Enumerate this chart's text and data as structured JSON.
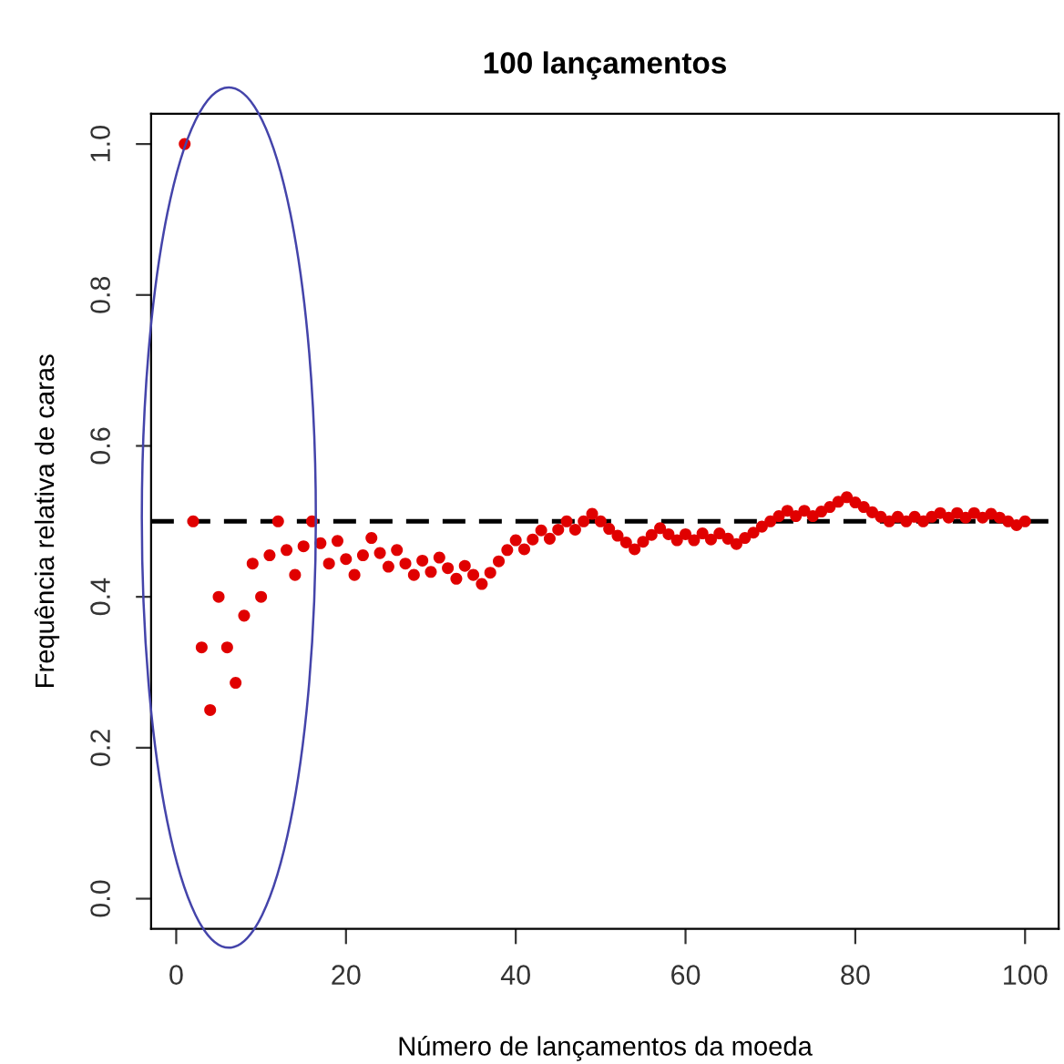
{
  "chart_data": {
    "type": "scatter",
    "title": "100 lançamentos",
    "xlabel": "Número de lançamentos da moeda",
    "ylabel": "Frequência relativa de caras",
    "x": [
      1,
      2,
      3,
      4,
      5,
      6,
      7,
      8,
      9,
      10,
      11,
      12,
      13,
      14,
      15,
      16,
      17,
      18,
      19,
      20,
      21,
      22,
      23,
      24,
      25,
      26,
      27,
      28,
      29,
      30,
      31,
      32,
      33,
      34,
      35,
      36,
      37,
      38,
      39,
      40,
      41,
      42,
      43,
      44,
      45,
      46,
      47,
      48,
      49,
      50,
      51,
      52,
      53,
      54,
      55,
      56,
      57,
      58,
      59,
      60,
      61,
      62,
      63,
      64,
      65,
      66,
      67,
      68,
      69,
      70,
      71,
      72,
      73,
      74,
      75,
      76,
      77,
      78,
      79,
      80,
      81,
      82,
      83,
      84,
      85,
      86,
      87,
      88,
      89,
      90,
      91,
      92,
      93,
      94,
      95,
      96,
      97,
      98,
      99,
      100
    ],
    "series": [
      {
        "color": "#e00000",
        "values": [
          1.0,
          0.5,
          0.333,
          0.25,
          0.4,
          0.333,
          0.286,
          0.375,
          0.444,
          0.4,
          0.455,
          0.5,
          0.462,
          0.429,
          0.467,
          0.5,
          0.471,
          0.444,
          0.474,
          0.45,
          0.429,
          0.455,
          0.478,
          0.458,
          0.44,
          0.462,
          0.444,
          0.429,
          0.448,
          0.433,
          0.452,
          0.438,
          0.424,
          0.441,
          0.429,
          0.417,
          0.432,
          0.447,
          0.462,
          0.475,
          0.463,
          0.476,
          0.488,
          0.477,
          0.489,
          0.5,
          0.489,
          0.5,
          0.51,
          0.5,
          0.49,
          0.481,
          0.472,
          0.463,
          0.473,
          0.482,
          0.491,
          0.483,
          0.475,
          0.483,
          0.475,
          0.484,
          0.476,
          0.484,
          0.477,
          0.47,
          0.478,
          0.485,
          0.493,
          0.5,
          0.507,
          0.514,
          0.507,
          0.514,
          0.507,
          0.513,
          0.519,
          0.526,
          0.532,
          0.525,
          0.519,
          0.512,
          0.506,
          0.5,
          0.506,
          0.5,
          0.506,
          0.5,
          0.506,
          0.511,
          0.505,
          0.511,
          0.505,
          0.511,
          0.505,
          0.51,
          0.505,
          0.5,
          0.495,
          0.5
        ]
      }
    ],
    "xlim": [
      -2.96,
      103.96
    ],
    "ylim": [
      -0.04,
      1.04
    ],
    "xticks": [
      0,
      20,
      40,
      60,
      80,
      100
    ],
    "yticks": [
      {
        "value": 0,
        "label": "0.0"
      },
      {
        "value": 0.2,
        "label": "0.2"
      },
      {
        "value": 0.4,
        "label": "0.4"
      },
      {
        "value": 0.6,
        "label": "0.6"
      },
      {
        "value": 0.8,
        "label": "0.8"
      },
      {
        "value": 1.0,
        "label": "1.0"
      }
    ],
    "ref_lines": [
      {
        "axis": "y",
        "value": 0.5,
        "color": "#000000",
        "line_style": "dashed"
      }
    ],
    "marker": "circle",
    "grid": false,
    "legend": false
  }
}
